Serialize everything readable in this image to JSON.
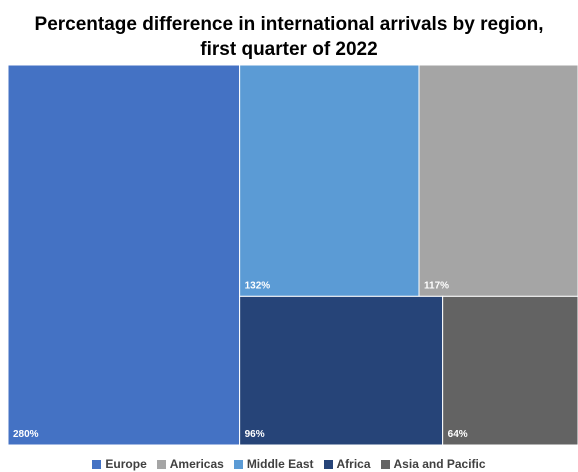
{
  "chart_data": {
    "type": "treemap",
    "title": "Percentage difference in international arrivals by region,\nfirst quarter of 2022",
    "series": [
      {
        "name": "Europe",
        "value": 280,
        "label": "280%",
        "color": "#4472C4"
      },
      {
        "name": "Americas",
        "value": 117,
        "label": "117%",
        "color": "#A5A5A5"
      },
      {
        "name": "Middle East",
        "value": 132,
        "label": "132%",
        "color": "#5B9BD5"
      },
      {
        "name": "Africa",
        "value": 96,
        "label": "96%",
        "color": "#264478"
      },
      {
        "name": "Asia and Pacific",
        "value": 64,
        "label": "64%",
        "color": "#636363"
      }
    ],
    "legend_position": "bottom"
  }
}
